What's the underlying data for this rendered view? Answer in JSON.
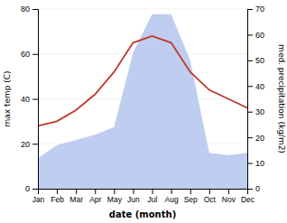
{
  "chart_data": {
    "type": "line",
    "xlabel": "date (month)",
    "ylabel": "max temp (C)",
    "y2label": "med. precipitation (kg/m2)",
    "categories": [
      "Jan",
      "Feb",
      "Mar",
      "Apr",
      "May",
      "Jun",
      "Jul",
      "Aug",
      "Sep",
      "Oct",
      "Nov",
      "Dec"
    ],
    "series": [
      {
        "type": "area",
        "axis": "y2",
        "color": "#b8c8ee",
        "values": [
          12,
          17,
          19,
          21,
          24,
          53,
          68,
          68,
          50,
          14,
          13,
          14
        ]
      },
      {
        "type": "line",
        "color": "#c0392b",
        "values": [
          28,
          30,
          35,
          42,
          52,
          65,
          68,
          65,
          52,
          44,
          40,
          36
        ]
      }
    ],
    "ylim": [
      0,
      80
    ],
    "yticks": [
      0,
      20,
      40,
      60,
      80
    ],
    "y2lim": [
      0,
      70
    ],
    "y2ticks": [
      0,
      10,
      20,
      30,
      40,
      50,
      60,
      70
    ],
    "grid": true
  }
}
